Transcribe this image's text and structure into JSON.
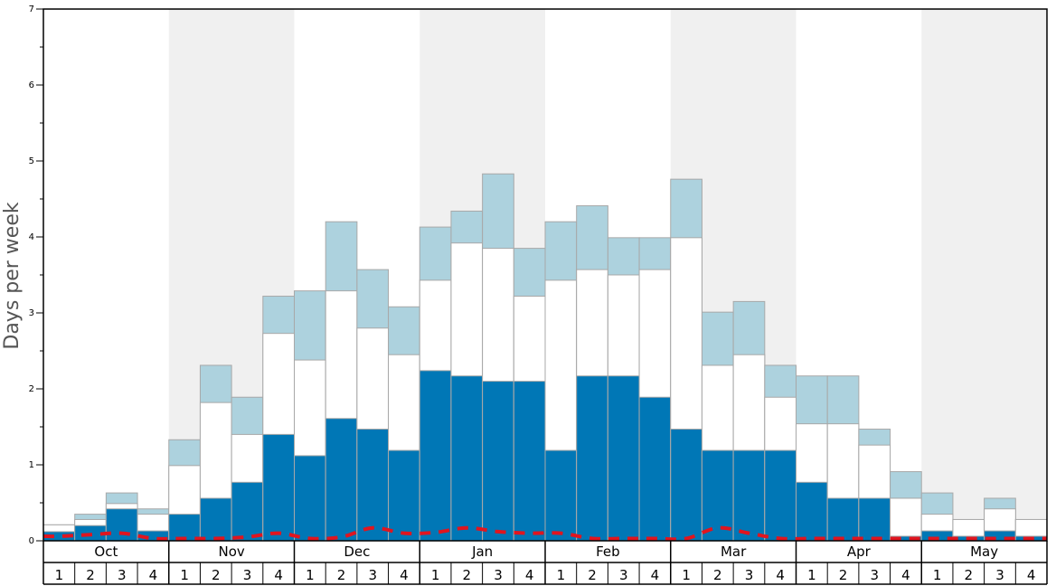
{
  "chart_data": {
    "type": "bar",
    "ylabel": "Days per week",
    "ylim": [
      0,
      7
    ],
    "yticks": [
      "0",
      "1",
      "2",
      "3",
      "4",
      "5",
      "6",
      "7"
    ],
    "months": [
      "Oct",
      "Nov",
      "Dec",
      "Jan",
      "Feb",
      "Mar",
      "Apr",
      "May"
    ],
    "week_labels": [
      "1",
      "2",
      "3",
      "4",
      "1",
      "2",
      "3",
      "4",
      "1",
      "2",
      "3",
      "4",
      "1",
      "2",
      "3",
      "4",
      "1",
      "2",
      "3",
      "4",
      "1",
      "2",
      "3",
      "4",
      "1",
      "2",
      "3",
      "4",
      "1",
      "2",
      "3",
      "4"
    ],
    "colors": {
      "bottom_segment": "#0077b6",
      "middle_segment": "#ffffff",
      "top_segment": "#add2de",
      "shaded_month": "#f0f0f0",
      "dashed_line": "#e0151f"
    },
    "series": [
      {
        "values": [
          0.12,
          0.2,
          0.42,
          0.13,
          0.35,
          0.56,
          0.77,
          1.4,
          1.12,
          1.61,
          1.47,
          1.19,
          2.24,
          2.17,
          2.1,
          2.1,
          1.19,
          2.17,
          2.17,
          1.89,
          1.47,
          1.19,
          1.19,
          1.19,
          0.77,
          0.56,
          0.56,
          0.06,
          0.13,
          0.06,
          0.13,
          0.06
        ]
      },
      {
        "values": [
          0.21,
          0.28,
          0.49,
          0.35,
          0.99,
          1.82,
          1.4,
          2.73,
          2.38,
          3.29,
          2.8,
          2.45,
          3.43,
          3.92,
          3.85,
          3.22,
          3.43,
          3.57,
          3.5,
          3.57,
          3.99,
          2.31,
          2.45,
          1.89,
          1.54,
          1.54,
          1.26,
          0.56,
          0.35,
          0.28,
          0.42,
          0.28
        ]
      },
      {
        "values": [
          0.21,
          0.35,
          0.63,
          0.42,
          1.33,
          2.31,
          1.89,
          3.22,
          3.29,
          4.2,
          3.57,
          3.08,
          4.13,
          4.34,
          4.83,
          3.85,
          4.2,
          4.41,
          3.99,
          3.99,
          4.76,
          3.01,
          3.15,
          2.31,
          2.17,
          2.17,
          1.47,
          0.91,
          0.63,
          0.28,
          0.56,
          0.28
        ]
      },
      {
        "values": [
          0.06,
          0.08,
          0.1,
          0.03,
          0.03,
          0.03,
          0.05,
          0.1,
          0.03,
          0.05,
          0.17,
          0.1,
          0.11,
          0.17,
          0.12,
          0.1,
          0.1,
          0.03,
          0.03,
          0.03,
          0.03,
          0.17,
          0.1,
          0.03,
          0.03,
          0.03,
          0.03,
          0.03,
          0.03,
          0.03,
          0.03,
          0.03
        ]
      }
    ]
  }
}
